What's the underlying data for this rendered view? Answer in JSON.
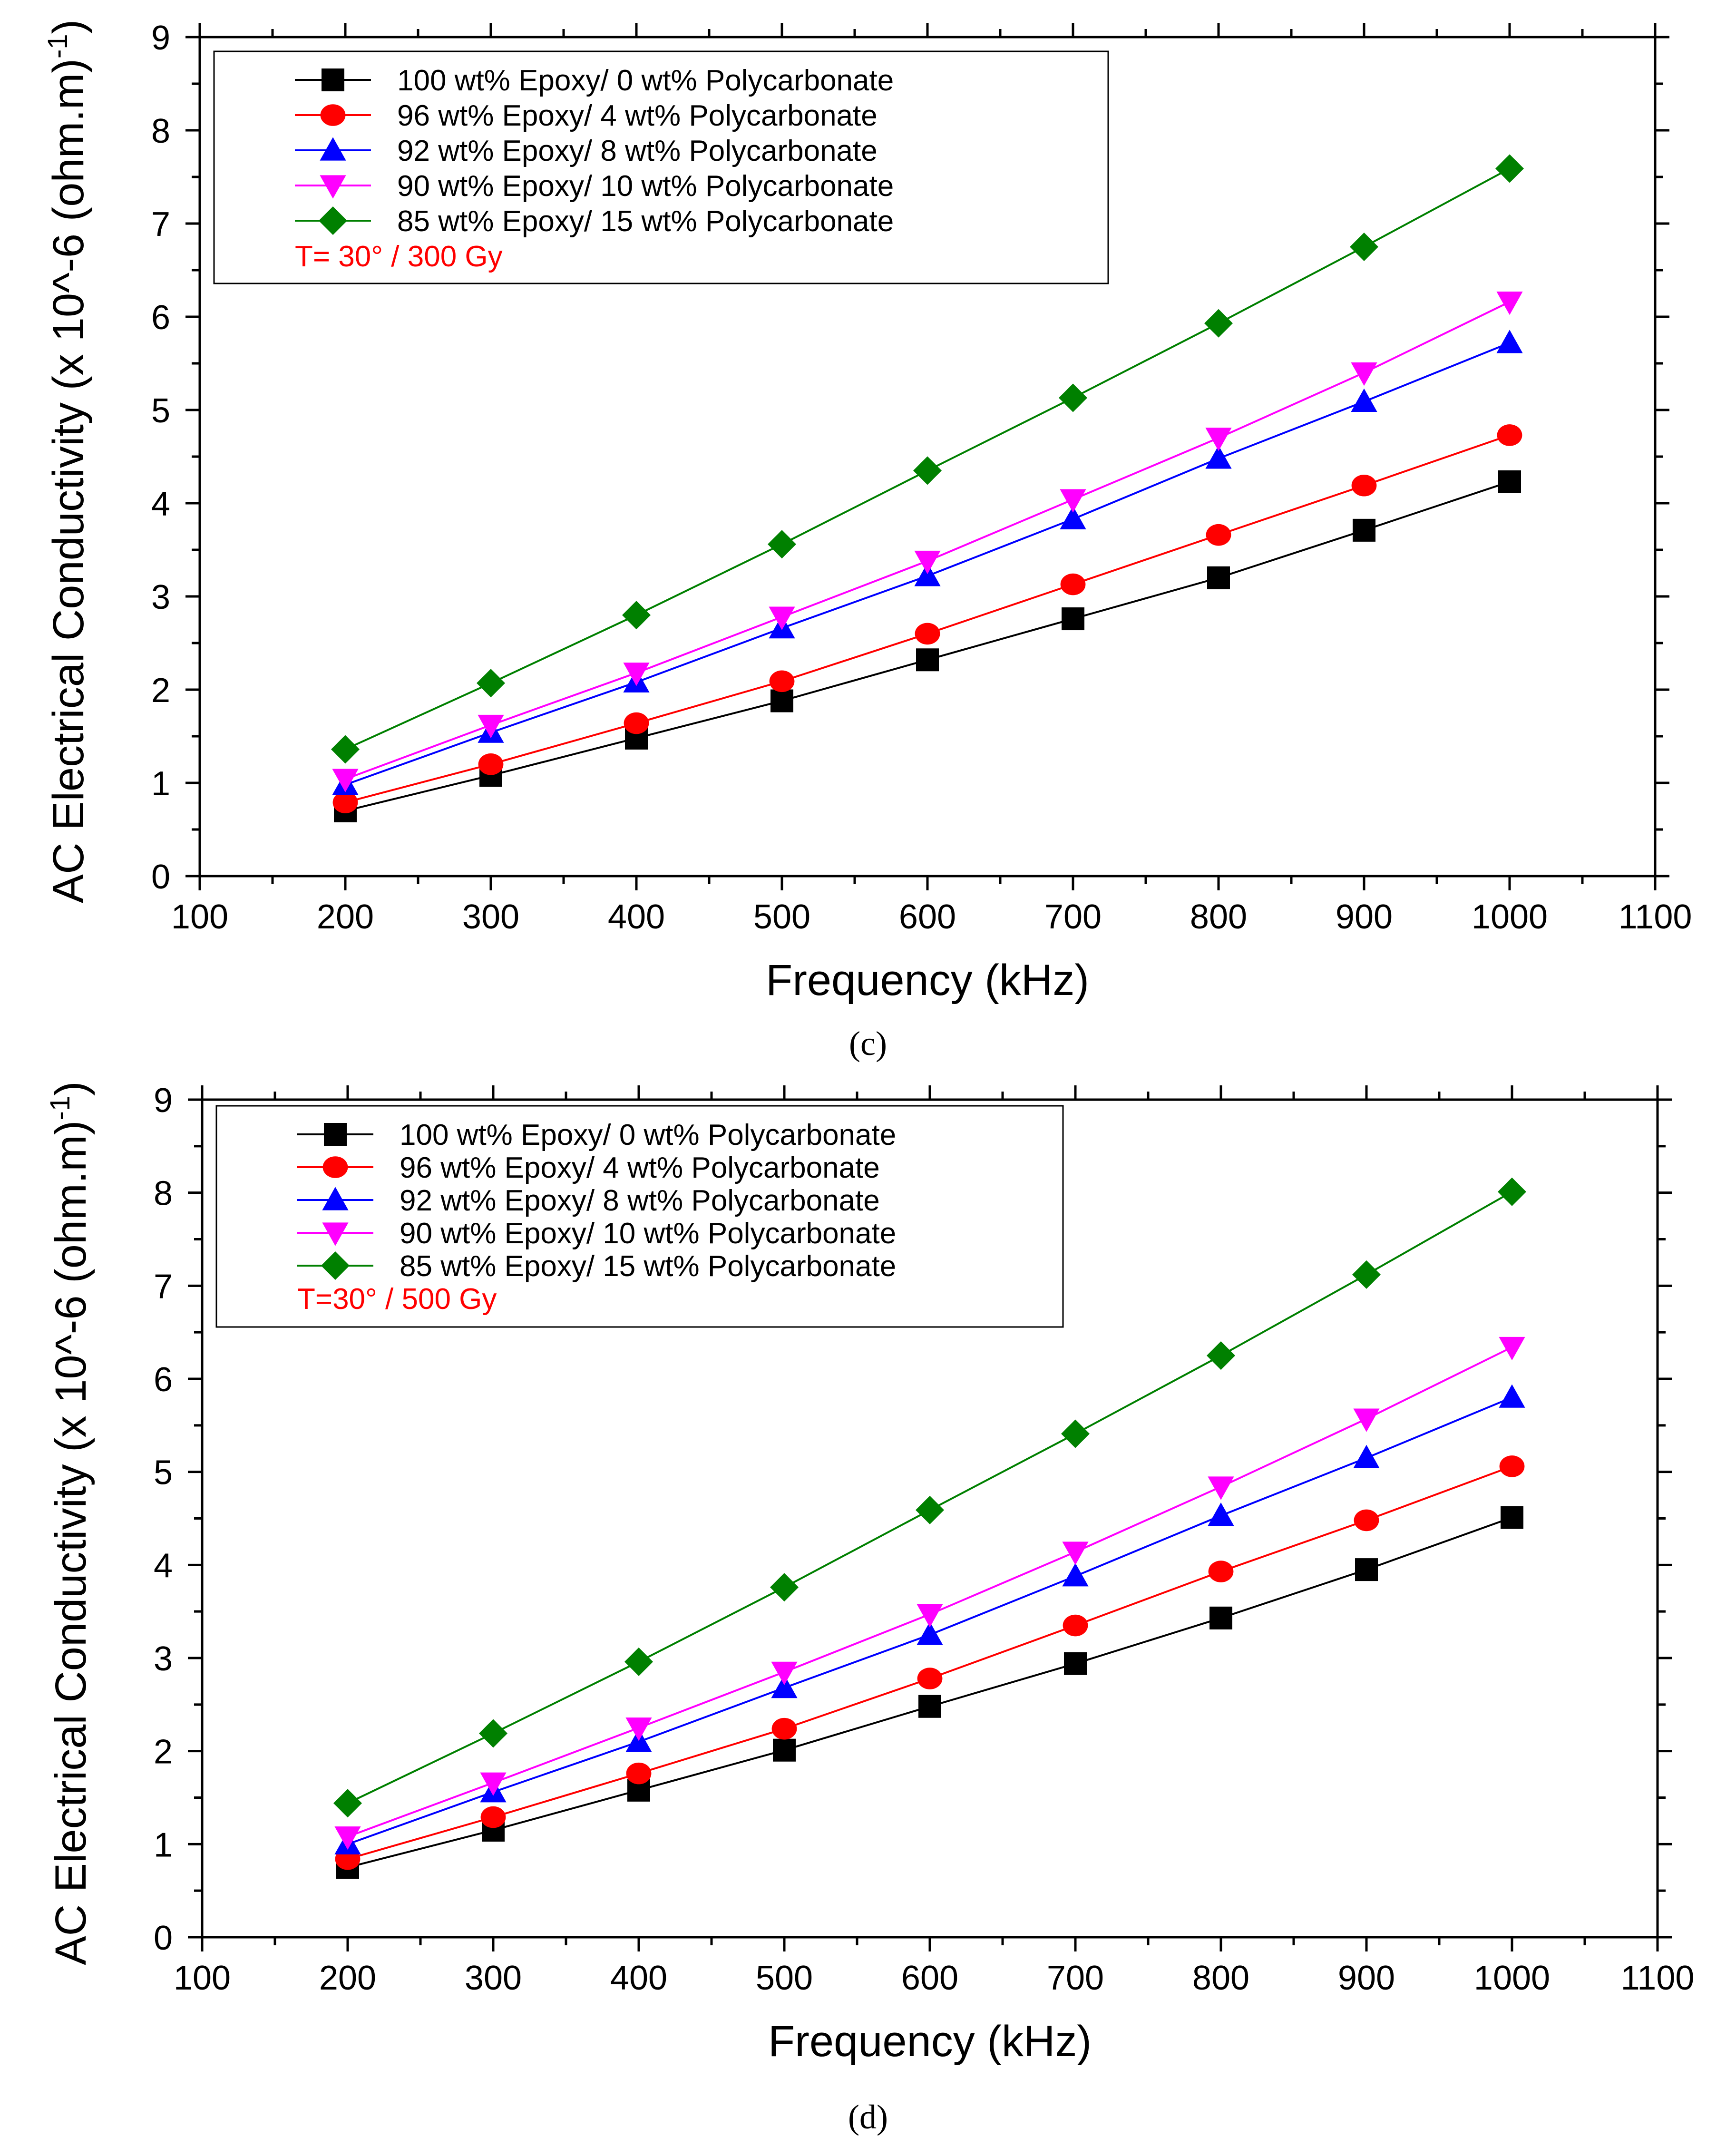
{
  "chart_data": [
    {
      "type": "line",
      "panel": "c",
      "caption": "(c)",
      "xlabel": "Frequency (kHz)",
      "ylabel": "AC Electrical Conductivity (x 10^-6 (ohm.m)",
      "ylabel_sup": "-1",
      "ylabel_close": ")",
      "xlim": [
        100,
        1100
      ],
      "ylim": [
        0,
        9
      ],
      "xticks": [
        100,
        200,
        300,
        400,
        500,
        600,
        700,
        800,
        900,
        1000,
        1100
      ],
      "yticks": [
        0,
        1,
        2,
        3,
        4,
        5,
        6,
        7,
        8,
        9
      ],
      "annotation": "T= 30° / 300 Gy",
      "x": [
        200,
        300,
        400,
        500,
        600,
        700,
        800,
        900,
        1000
      ],
      "series": [
        {
          "name": "100 wt% Epoxy/ 0 wt% Polycarbonate",
          "color": "#000000",
          "marker": "square",
          "values": [
            0.7,
            1.08,
            1.48,
            1.88,
            2.32,
            2.76,
            3.2,
            3.71,
            4.23
          ]
        },
        {
          "name": "96 wt% Epoxy/ 4 wt% Polycarbonate",
          "color": "#ff0000",
          "marker": "circle",
          "values": [
            0.79,
            1.2,
            1.64,
            2.09,
            2.6,
            3.13,
            3.66,
            4.19,
            4.73
          ]
        },
        {
          "name": "92 wt% Epoxy/ 8 wt% Polycarbonate",
          "color": "#0000ff",
          "marker": "triangle-up",
          "values": [
            0.98,
            1.54,
            2.08,
            2.66,
            3.22,
            3.83,
            4.48,
            5.09,
            5.72
          ]
        },
        {
          "name": "90 wt% Epoxy/ 10 wt% Polycarbonate",
          "color": "#ff00ff",
          "marker": "triangle-down",
          "values": [
            1.04,
            1.62,
            2.18,
            2.78,
            3.38,
            4.04,
            4.7,
            5.4,
            6.16
          ]
        },
        {
          "name": "85 wt% Epoxy/ 15 wt% Polycarbonate",
          "color": "#008000",
          "marker": "diamond",
          "values": [
            1.36,
            2.07,
            2.8,
            3.56,
            4.35,
            5.13,
            5.93,
            6.75,
            7.59
          ]
        }
      ]
    },
    {
      "type": "line",
      "panel": "d",
      "caption": "(d)",
      "xlabel": "Frequency (kHz)",
      "ylabel": "AC Electrical Conductivity (x 10^-6 (ohm.m)",
      "ylabel_sup": "-1",
      "ylabel_close": ")",
      "xlim": [
        100,
        1100
      ],
      "ylim": [
        0,
        9
      ],
      "xticks": [
        100,
        200,
        300,
        400,
        500,
        600,
        700,
        800,
        900,
        1000,
        1100
      ],
      "yticks": [
        0,
        1,
        2,
        3,
        4,
        5,
        6,
        7,
        8,
        9
      ],
      "annotation": "T=30° / 500 Gy",
      "x": [
        200,
        300,
        400,
        500,
        600,
        700,
        800,
        900,
        1000
      ],
      "series": [
        {
          "name": "100 wt% Epoxy/ 0 wt% Polycarbonate",
          "color": "#000000",
          "marker": "square",
          "values": [
            0.75,
            1.15,
            1.58,
            2.01,
            2.48,
            2.94,
            3.43,
            3.95,
            4.51
          ]
        },
        {
          "name": "96 wt% Epoxy/ 4 wt% Polycarbonate",
          "color": "#ff0000",
          "marker": "circle",
          "values": [
            0.84,
            1.29,
            1.76,
            2.24,
            2.78,
            3.35,
            3.93,
            4.48,
            5.06
          ]
        },
        {
          "name": "92 wt% Epoxy/ 8 wt% Polycarbonate",
          "color": "#0000ff",
          "marker": "triangle-up",
          "values": [
            1.0,
            1.56,
            2.1,
            2.68,
            3.25,
            3.88,
            4.53,
            5.15,
            5.8
          ]
        },
        {
          "name": "90 wt% Epoxy/ 10 wt% Polycarbonate",
          "color": "#ff00ff",
          "marker": "triangle-down",
          "values": [
            1.08,
            1.66,
            2.25,
            2.85,
            3.47,
            4.14,
            4.84,
            5.57,
            6.34
          ]
        },
        {
          "name": "85 wt% Epoxy/ 15 wt% Polycarbonate",
          "color": "#008000",
          "marker": "diamond",
          "values": [
            1.44,
            2.19,
            2.96,
            3.76,
            4.59,
            5.41,
            6.25,
            7.12,
            8.01
          ]
        }
      ]
    }
  ]
}
